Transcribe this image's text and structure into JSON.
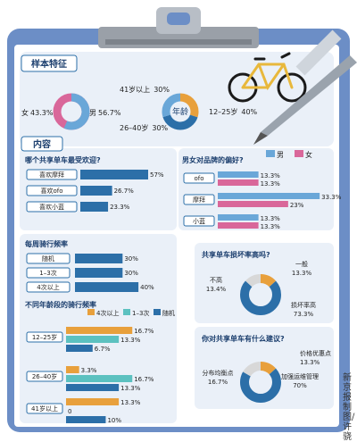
{
  "sample": {
    "title": "样本特征",
    "gender": {
      "female_label": "女",
      "female_value": "43.3%",
      "male_label": "男",
      "male_value": "56.7%",
      "female_pct": 43.3,
      "male_pct": 56.7,
      "colors": {
        "male": "#6aa7d8",
        "female": "#d9679a"
      }
    },
    "age": {
      "center_label": "年龄",
      "items": [
        {
          "label": "41岁以上",
          "value": "30%",
          "pct": 30
        },
        {
          "label": "12–25岁",
          "value": "40%",
          "pct": 40
        },
        {
          "label": "26–40岁",
          "value": "30%",
          "pct": 30
        }
      ],
      "colors": [
        "#e8a03c",
        "#2c6fa8",
        "#6aa7d8"
      ]
    }
  },
  "content": {
    "title": "内容",
    "legend": {
      "male": "男",
      "female": "女"
    }
  },
  "chart_data": [
    {
      "type": "bar",
      "title": "哪个共享单车最受欢迎?",
      "categories": [
        "喜欢摩拜",
        "喜欢ofo",
        "喜欢小蓝"
      ],
      "values": [
        57,
        26.7,
        23.3
      ],
      "value_labels": [
        "57%",
        "26.7%",
        "23.3%"
      ],
      "color": "#2c6fa8",
      "xlim": [
        0,
        60
      ]
    },
    {
      "type": "bar",
      "title": "男女对品牌的偏好?",
      "categories": [
        "ofo",
        "摩拜",
        "小蓝"
      ],
      "series": [
        {
          "name": "男",
          "values": [
            13.3,
            33.3,
            13.3
          ],
          "value_labels": [
            "13.3%",
            "33.3%",
            "13.3%"
          ],
          "color": "#6aa7d8"
        },
        {
          "name": "女",
          "values": [
            13.3,
            23,
            13.3
          ],
          "value_labels": [
            "13.3%",
            "23%",
            "13.3%"
          ],
          "color": "#d9679a"
        }
      ],
      "xlim": [
        0,
        35
      ]
    },
    {
      "type": "bar",
      "title": "每周骑行频率",
      "categories": [
        "随机",
        "1–3次",
        "4次以上"
      ],
      "values": [
        30,
        30,
        40
      ],
      "value_labels": [
        "30%",
        "30%",
        "40%"
      ],
      "color": "#2c6fa8",
      "xlim": [
        0,
        45
      ]
    },
    {
      "type": "bar",
      "title": "不同年龄段的骑行频率",
      "categories": [
        "12–25岁",
        "26–40岁",
        "41岁以上"
      ],
      "series": [
        {
          "name": "4次以上",
          "values": [
            16.7,
            3.3,
            13.3
          ],
          "value_labels": [
            "16.7%",
            "3.3%",
            "13.3%"
          ],
          "color": "#e8a03c"
        },
        {
          "name": "1–3次",
          "values": [
            13.3,
            16.7,
            0
          ],
          "value_labels": [
            "13.3%",
            "16.7%",
            "0"
          ],
          "color": "#5cc1c0"
        },
        {
          "name": "随机",
          "values": [
            6.7,
            13.3,
            10
          ],
          "value_labels": [
            "6.7%",
            "13.3%",
            "10%"
          ],
          "color": "#2c6fa8"
        }
      ],
      "xlim": [
        0,
        18
      ]
    },
    {
      "type": "pie",
      "title": "共享单车损坏率高吗?",
      "slices": [
        {
          "label": "一般",
          "value": 13.3,
          "value_label": "13.3%",
          "color": "#e8a03c"
        },
        {
          "label": "损坏率高",
          "value": 73.3,
          "value_label": "73.3%",
          "color": "#2c6fa8"
        },
        {
          "label": "不高",
          "value": 13.4,
          "value_label": "13.4%",
          "color": "#d8d8d8"
        }
      ]
    },
    {
      "type": "pie",
      "title": "你对共享单车有什么建议?",
      "slices": [
        {
          "label": "价格优惠点",
          "value": 13.3,
          "value_label": "13.3%",
          "color": "#e8a03c"
        },
        {
          "label": "加强运维管理",
          "value": 70,
          "value_label": "70%",
          "color": "#2c6fa8"
        },
        {
          "label": "分布均衡点",
          "value": 16.7,
          "value_label": "16.7%",
          "color": "#d8d8d8"
        }
      ]
    }
  ],
  "credit": "新京报制图/许骁"
}
